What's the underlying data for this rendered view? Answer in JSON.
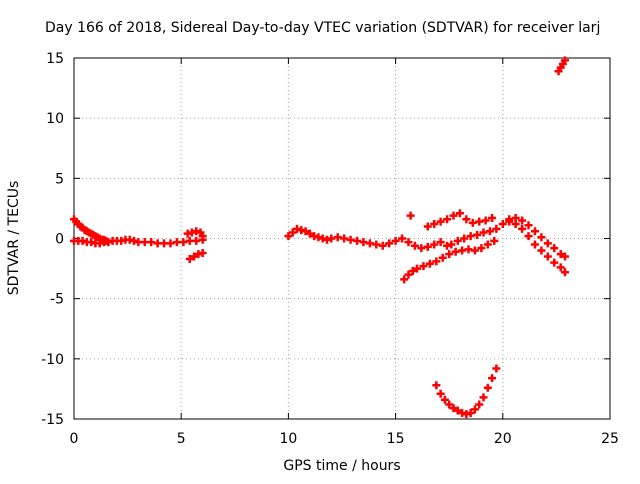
{
  "chart_data": {
    "type": "scatter",
    "title": "Day 166 of 2018, Sidereal Day-to-day VTEC variation (SDTVAR) for receiver larj",
    "xlabel": "GPS time / hours",
    "ylabel": "SDTVAR / TECUs",
    "xlim": [
      0,
      25
    ],
    "ylim": [
      -15,
      15
    ],
    "xticks": [
      0,
      5,
      10,
      15,
      20,
      25
    ],
    "yticks": [
      -15,
      -10,
      -5,
      0,
      5,
      10,
      15
    ],
    "grid": true,
    "marker": "+",
    "series": [
      {
        "name": "SDTVAR",
        "color": "#ff0000",
        "x": [
          0.0,
          0.1,
          0.2,
          0.3,
          0.4,
          0.5,
          0.6,
          0.7,
          0.8,
          0.9,
          1.0,
          1.1,
          1.2,
          1.3,
          1.4,
          1.5,
          0.0,
          0.2,
          0.4,
          0.6,
          0.8,
          1.0,
          1.2,
          1.4,
          1.6,
          1.8,
          2.0,
          2.2,
          2.4,
          2.6,
          2.8,
          3.0,
          3.3,
          3.6,
          3.9,
          4.2,
          4.5,
          4.8,
          5.1,
          5.4,
          5.7,
          6.0,
          5.3,
          5.5,
          5.7,
          5.9,
          6.0,
          5.4,
          5.6,
          5.8,
          6.0,
          10.0,
          10.2,
          10.4,
          10.6,
          10.8,
          11.0,
          11.2,
          11.4,
          11.6,
          11.8,
          12.0,
          12.3,
          12.6,
          12.9,
          13.2,
          13.5,
          13.8,
          14.1,
          14.4,
          14.7,
          15.0,
          15.3,
          15.6,
          15.9,
          16.2,
          16.5,
          16.8,
          17.1,
          17.4,
          15.4,
          15.6,
          15.8,
          16.0,
          16.3,
          16.6,
          16.9,
          17.2,
          17.5,
          17.8,
          18.1,
          18.4,
          18.7,
          19.0,
          19.3,
          19.6,
          15.7,
          16.5,
          16.8,
          17.1,
          17.4,
          17.7,
          18.0,
          18.3,
          18.6,
          18.9,
          19.2,
          19.5,
          17.6,
          17.9,
          18.2,
          18.5,
          18.8,
          19.1,
          19.4,
          19.7,
          20.0,
          20.3,
          20.6,
          20.9,
          21.2,
          21.5,
          21.8,
          22.1,
          22.4,
          22.7,
          22.9,
          20.3,
          20.6,
          20.9,
          21.2,
          21.5,
          21.8,
          22.1,
          22.4,
          22.7,
          22.9,
          16.9,
          17.1,
          17.3,
          17.5,
          17.7,
          17.9,
          18.1,
          18.3,
          18.5,
          18.7,
          18.9,
          19.1,
          19.3,
          19.5,
          19.7,
          22.6,
          22.7,
          22.8,
          22.9
        ],
        "y": [
          1.6,
          1.4,
          1.2,
          1.0,
          0.9,
          0.7,
          0.6,
          0.5,
          0.4,
          0.3,
          0.2,
          0.1,
          0.0,
          -0.1,
          -0.1,
          -0.2,
          -0.2,
          -0.2,
          -0.2,
          -0.3,
          -0.3,
          -0.4,
          -0.4,
          -0.3,
          -0.3,
          -0.2,
          -0.2,
          -0.2,
          -0.1,
          -0.1,
          -0.2,
          -0.3,
          -0.3,
          -0.3,
          -0.4,
          -0.4,
          -0.4,
          -0.3,
          -0.3,
          -0.2,
          -0.2,
          -0.1,
          0.4,
          0.5,
          0.6,
          0.5,
          0.2,
          -1.7,
          -1.5,
          -1.3,
          -1.2,
          0.2,
          0.5,
          0.8,
          0.7,
          0.6,
          0.4,
          0.2,
          0.1,
          0.0,
          -0.1,
          0.0,
          0.1,
          0.0,
          -0.1,
          -0.2,
          -0.3,
          -0.4,
          -0.5,
          -0.6,
          -0.4,
          -0.2,
          0.0,
          -0.3,
          -0.6,
          -0.8,
          -0.7,
          -0.5,
          -0.3,
          -0.6,
          -3.4,
          -3.0,
          -2.7,
          -2.5,
          -2.3,
          -2.1,
          -1.9,
          -1.6,
          -1.3,
          -1.1,
          -1.0,
          -0.9,
          -1.0,
          -0.8,
          -0.5,
          -0.2,
          1.9,
          1.0,
          1.2,
          1.4,
          1.6,
          1.9,
          2.1,
          1.6,
          1.3,
          1.4,
          1.5,
          1.7,
          -0.5,
          -0.2,
          0.0,
          0.2,
          0.3,
          0.5,
          0.6,
          0.8,
          1.2,
          1.6,
          1.7,
          1.5,
          1.1,
          0.6,
          0.1,
          -0.4,
          -0.8,
          -1.3,
          -1.5,
          1.4,
          1.2,
          0.8,
          0.2,
          -0.5,
          -1.0,
          -1.5,
          -2.0,
          -2.4,
          -2.8,
          -12.2,
          -12.9,
          -13.4,
          -13.8,
          -14.1,
          -14.3,
          -14.5,
          -14.6,
          -14.5,
          -14.2,
          -13.8,
          -13.2,
          -12.4,
          -11.6,
          -10.8,
          13.9,
          14.2,
          14.5,
          14.8
        ]
      }
    ]
  }
}
